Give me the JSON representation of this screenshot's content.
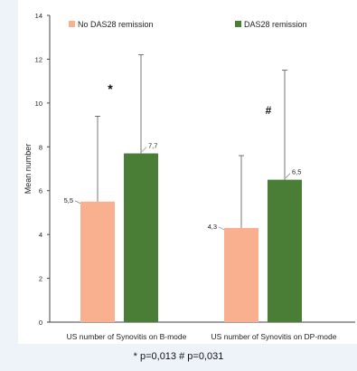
{
  "chart_data": {
    "type": "bar",
    "title": "",
    "xlabel": "",
    "ylabel": "Mean number",
    "ylim": [
      0,
      14
    ],
    "yticks": [
      0,
      2,
      4,
      6,
      8,
      10,
      12,
      14
    ],
    "categories": [
      "US number of Synovitis on B-mode",
      "US number of Synovitis on DP-mode"
    ],
    "series": [
      {
        "name": "No DAS28 remission",
        "color": "#f8b08f",
        "values": [
          5.5,
          4.3
        ],
        "error_upper": [
          9.4,
          7.6
        ],
        "value_labels": [
          "5,5",
          "4,3"
        ]
      },
      {
        "name": "DAS28 remission",
        "color": "#4a7d35",
        "values": [
          7.7,
          6.5
        ],
        "error_upper": [
          12.2,
          11.5
        ],
        "value_labels": [
          "7,7",
          "6,5"
        ]
      }
    ],
    "annotations": [
      "*",
      "#"
    ],
    "legend_position": "top",
    "grid": false
  },
  "footnote": "* p=0,013   # p=0,031"
}
